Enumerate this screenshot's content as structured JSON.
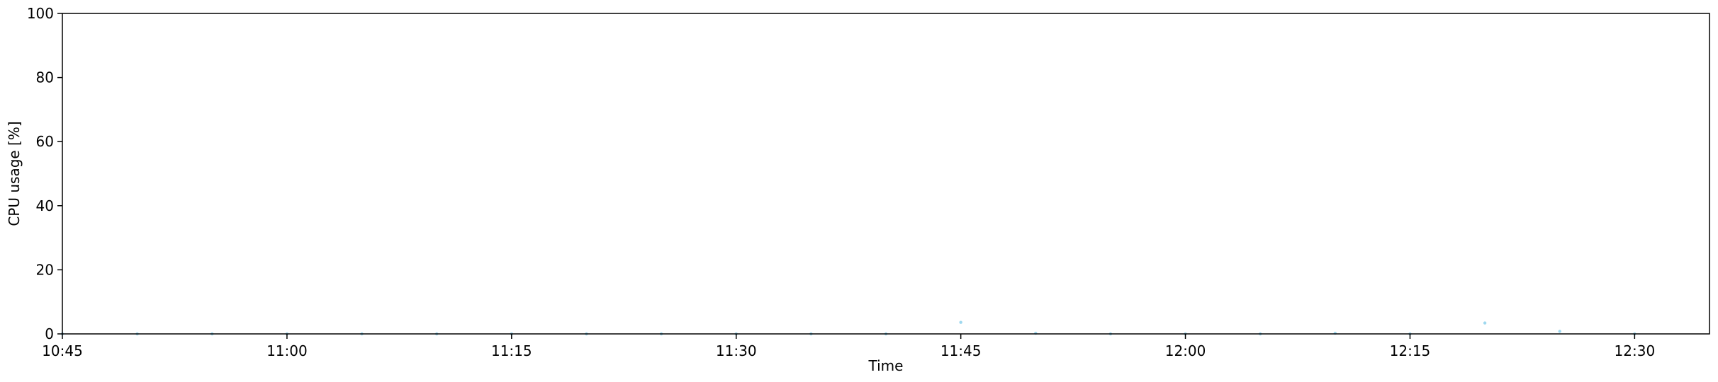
{
  "chart_data": {
    "type": "scatter",
    "xlabel": "Time",
    "ylabel": "CPU usage [%]",
    "ylim": [
      0,
      100
    ],
    "xlim": [
      "10:45",
      "12:35"
    ],
    "yticks": [
      0,
      20,
      40,
      60,
      80,
      100
    ],
    "xticks": [
      "10:45",
      "11:00",
      "11:15",
      "11:30",
      "11:45",
      "12:00",
      "12:15",
      "12:30"
    ],
    "grid": false,
    "marker_color": "#87ceeb",
    "points": [
      {
        "x": "10:45",
        "y": 0
      },
      {
        "x": "10:50",
        "y": 0
      },
      {
        "x": "10:55",
        "y": 0
      },
      {
        "x": "11:00",
        "y": 0
      },
      {
        "x": "11:05",
        "y": 0
      },
      {
        "x": "11:10",
        "y": 0
      },
      {
        "x": "11:15",
        "y": 0
      },
      {
        "x": "11:20",
        "y": 0
      },
      {
        "x": "11:25",
        "y": 0
      },
      {
        "x": "11:30",
        "y": 0
      },
      {
        "x": "11:35",
        "y": 0
      },
      {
        "x": "11:40",
        "y": 0
      },
      {
        "x": "11:45",
        "y": 3.6
      },
      {
        "x": "11:50",
        "y": 0.2
      },
      {
        "x": "11:55",
        "y": 0
      },
      {
        "x": "12:00",
        "y": 0
      },
      {
        "x": "12:05",
        "y": 0
      },
      {
        "x": "12:10",
        "y": 0.2
      },
      {
        "x": "12:15",
        "y": 0
      },
      {
        "x": "12:20",
        "y": 3.4
      },
      {
        "x": "12:25",
        "y": 0.8
      },
      {
        "x": "12:30",
        "y": 0
      }
    ]
  }
}
